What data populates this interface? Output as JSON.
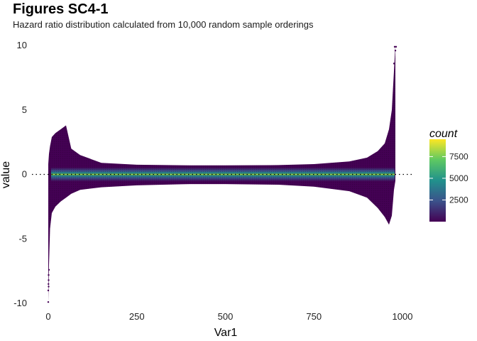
{
  "chart_data": {
    "type": "heatmap",
    "title": "Figures SC4-1",
    "subtitle": "Hazard ratio distribution calculated from 10,000 random sample orderings",
    "xlabel": "Var1",
    "ylabel": "value",
    "xlim": [
      0,
      1000
    ],
    "ylim": [
      -10,
      10
    ],
    "x_ticks": [
      0,
      250,
      500,
      750,
      1000
    ],
    "y_ticks": [
      -10,
      -5,
      0,
      5,
      10
    ],
    "reference_line_y": 0,
    "legend": {
      "title": "count",
      "ticks": [
        2500,
        5000,
        7500
      ],
      "range": [
        0,
        9500
      ],
      "colors": [
        "#440154",
        "#3b528b",
        "#21918c",
        "#5ec962",
        "#fde725"
      ],
      "placement": "right"
    },
    "envelope": [
      {
        "x": 0,
        "lower": -9.9,
        "upper": 0.8
      },
      {
        "x": 2,
        "lower": -7.0,
        "upper": 1.6
      },
      {
        "x": 5,
        "lower": -4.2,
        "upper": 2.2
      },
      {
        "x": 10,
        "lower": -3.0,
        "upper": 2.9
      },
      {
        "x": 20,
        "lower": -2.5,
        "upper": 3.2
      },
      {
        "x": 35,
        "lower": -2.1,
        "upper": 3.5
      },
      {
        "x": 50,
        "lower": -1.8,
        "upper": 3.8
      },
      {
        "x": 65,
        "lower": -1.5,
        "upper": 2.0
      },
      {
        "x": 90,
        "lower": -1.2,
        "upper": 1.5
      },
      {
        "x": 150,
        "lower": -1.0,
        "upper": 0.9
      },
      {
        "x": 250,
        "lower": -0.85,
        "upper": 0.75
      },
      {
        "x": 400,
        "lower": -0.75,
        "upper": 0.7
      },
      {
        "x": 500,
        "lower": -0.75,
        "upper": 0.7
      },
      {
        "x": 650,
        "lower": -0.8,
        "upper": 0.72
      },
      {
        "x": 750,
        "lower": -0.95,
        "upper": 0.8
      },
      {
        "x": 850,
        "lower": -1.3,
        "upper": 1.0
      },
      {
        "x": 900,
        "lower": -1.8,
        "upper": 1.3
      },
      {
        "x": 930,
        "lower": -2.6,
        "upper": 1.8
      },
      {
        "x": 950,
        "lower": -3.3,
        "upper": 2.4
      },
      {
        "x": 962,
        "lower": -3.9,
        "upper": 3.5
      },
      {
        "x": 970,
        "lower": -3.2,
        "upper": 5.0
      },
      {
        "x": 976,
        "lower": -1.2,
        "upper": 8.0
      },
      {
        "x": 980,
        "lower": -0.5,
        "upper": 10.0
      }
    ]
  }
}
